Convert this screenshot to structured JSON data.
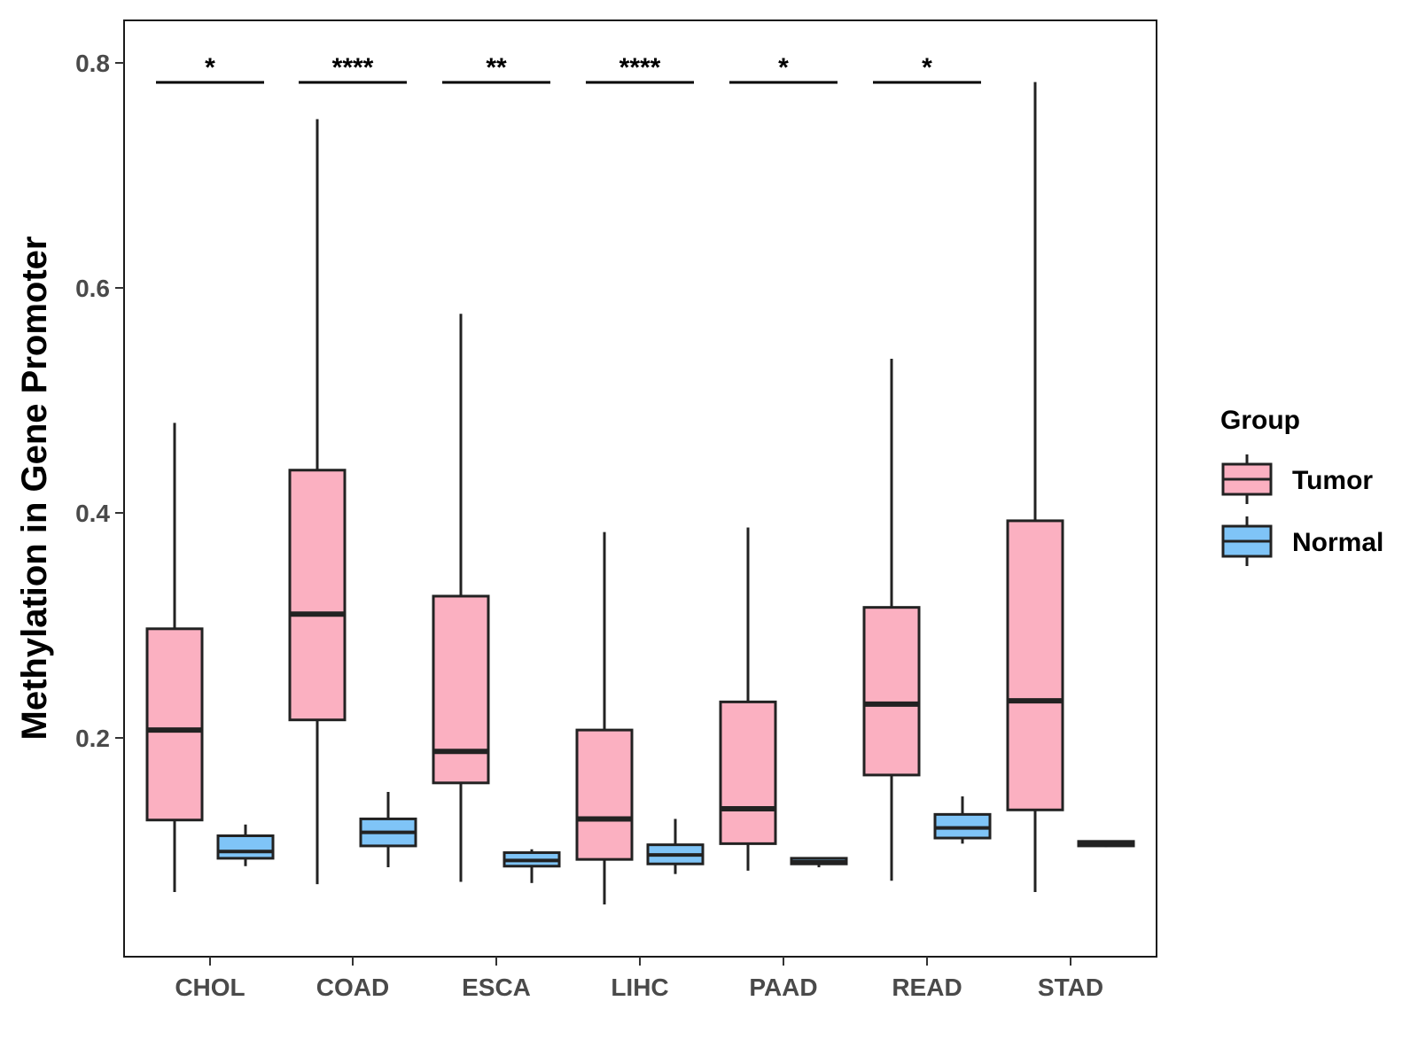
{
  "chart_data": {
    "type": "boxplot",
    "title": "",
    "xlabel": "",
    "ylabel": "Methylation in Gene Promoter",
    "ylim": [
      0.0,
      0.835
    ],
    "yticks": [
      "0.2",
      "0.4",
      "0.6",
      "0.8"
    ],
    "categories": [
      "CHOL",
      "COAD",
      "ESCA",
      "LIHC",
      "PAAD",
      "READ",
      "STAD"
    ],
    "legend": {
      "title": "Group",
      "placement": "right",
      "entries": [
        "Tumor",
        "Normal"
      ]
    },
    "colors": {
      "Tumor": "#FBB0C1",
      "Normal": "#7FC4F7",
      "stroke": "#222222"
    },
    "series": [
      {
        "name": "Tumor",
        "boxes": [
          {
            "min": 0.063,
            "q1": 0.127,
            "median": 0.207,
            "q3": 0.297,
            "max": 0.48
          },
          {
            "min": 0.07,
            "q1": 0.216,
            "median": 0.31,
            "q3": 0.438,
            "max": 0.75
          },
          {
            "min": 0.072,
            "q1": 0.16,
            "median": 0.188,
            "q3": 0.326,
            "max": 0.577
          },
          {
            "min": 0.052,
            "q1": 0.092,
            "median": 0.128,
            "q3": 0.207,
            "max": 0.383
          },
          {
            "min": 0.082,
            "q1": 0.106,
            "median": 0.137,
            "q3": 0.232,
            "max": 0.387
          },
          {
            "min": 0.073,
            "q1": 0.167,
            "median": 0.23,
            "q3": 0.316,
            "max": 0.537
          },
          {
            "min": 0.063,
            "q1": 0.136,
            "median": 0.233,
            "q3": 0.393,
            "max": 0.783
          }
        ]
      },
      {
        "name": "Normal",
        "boxes": [
          {
            "min": 0.086,
            "q1": 0.093,
            "median": 0.099,
            "q3": 0.113,
            "max": 0.123
          },
          {
            "min": 0.085,
            "q1": 0.104,
            "median": 0.116,
            "q3": 0.128,
            "max": 0.152
          },
          {
            "min": 0.071,
            "q1": 0.086,
            "median": 0.091,
            "q3": 0.098,
            "max": 0.101
          },
          {
            "min": 0.079,
            "q1": 0.088,
            "median": 0.096,
            "q3": 0.105,
            "max": 0.128
          },
          {
            "min": 0.085,
            "q1": 0.088,
            "median": 0.09,
            "q3": 0.093,
            "max": 0.094
          },
          {
            "min": 0.106,
            "q1": 0.111,
            "median": 0.12,
            "q3": 0.132,
            "max": 0.148
          },
          {
            "min": 0.103,
            "q1": 0.104,
            "median": 0.106,
            "q3": 0.108,
            "max": 0.109
          }
        ]
      }
    ],
    "significance": [
      {
        "category": "CHOL",
        "label": "*"
      },
      {
        "category": "COAD",
        "label": "****"
      },
      {
        "category": "ESCA",
        "label": "**"
      },
      {
        "category": "LIHC",
        "label": "****"
      },
      {
        "category": "PAAD",
        "label": "*"
      },
      {
        "category": "READ",
        "label": "*"
      },
      {
        "category": "STAD",
        "label": ""
      }
    ]
  }
}
